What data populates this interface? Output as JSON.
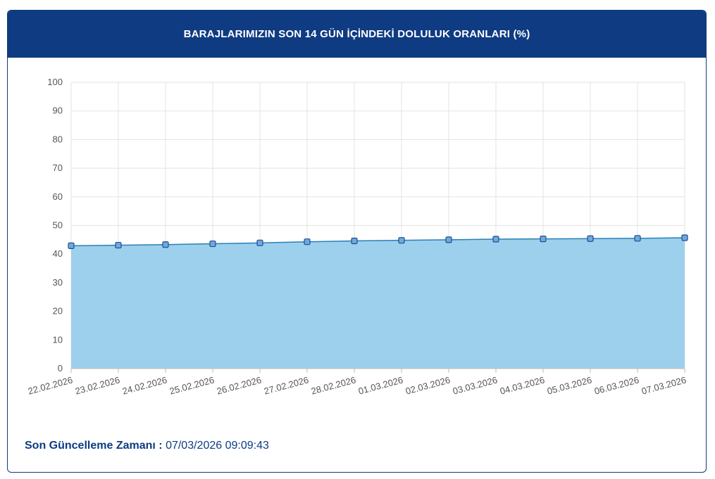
{
  "header": {
    "title": "BARAJLARIMIZIN SON 14 GÜN İÇİNDEKİ DOLULUK ORANLARI (%)"
  },
  "footer": {
    "label": "Son Güncelleme Zamanı :",
    "value": "07/03/2026 09:09:43"
  },
  "colors": {
    "header_bg": "#0f3b82",
    "area_fill": "#9dd0ec",
    "line": "#2a7fb8",
    "marker": "#1f4f8f"
  },
  "chart_data": {
    "type": "area",
    "title": "",
    "xlabel": "",
    "ylabel": "",
    "categories": [
      "22.02.2026",
      "23.02.2026",
      "24.02.2026",
      "25.02.2026",
      "26.02.2026",
      "27.02.2026",
      "28.02.2026",
      "01.03.2026",
      "02.03.2026",
      "03.03.2026",
      "04.03.2026",
      "05.03.2026",
      "06.03.2026",
      "07.03.2026"
    ],
    "values": [
      42.9,
      43.1,
      43.3,
      43.6,
      43.9,
      44.3,
      44.6,
      44.8,
      45.0,
      45.2,
      45.3,
      45.4,
      45.5,
      45.7
    ],
    "ylim": [
      0,
      100
    ],
    "yticks": [
      0,
      10,
      20,
      30,
      40,
      50,
      60,
      70,
      80,
      90,
      100
    ],
    "grid": true,
    "legend": "none"
  }
}
